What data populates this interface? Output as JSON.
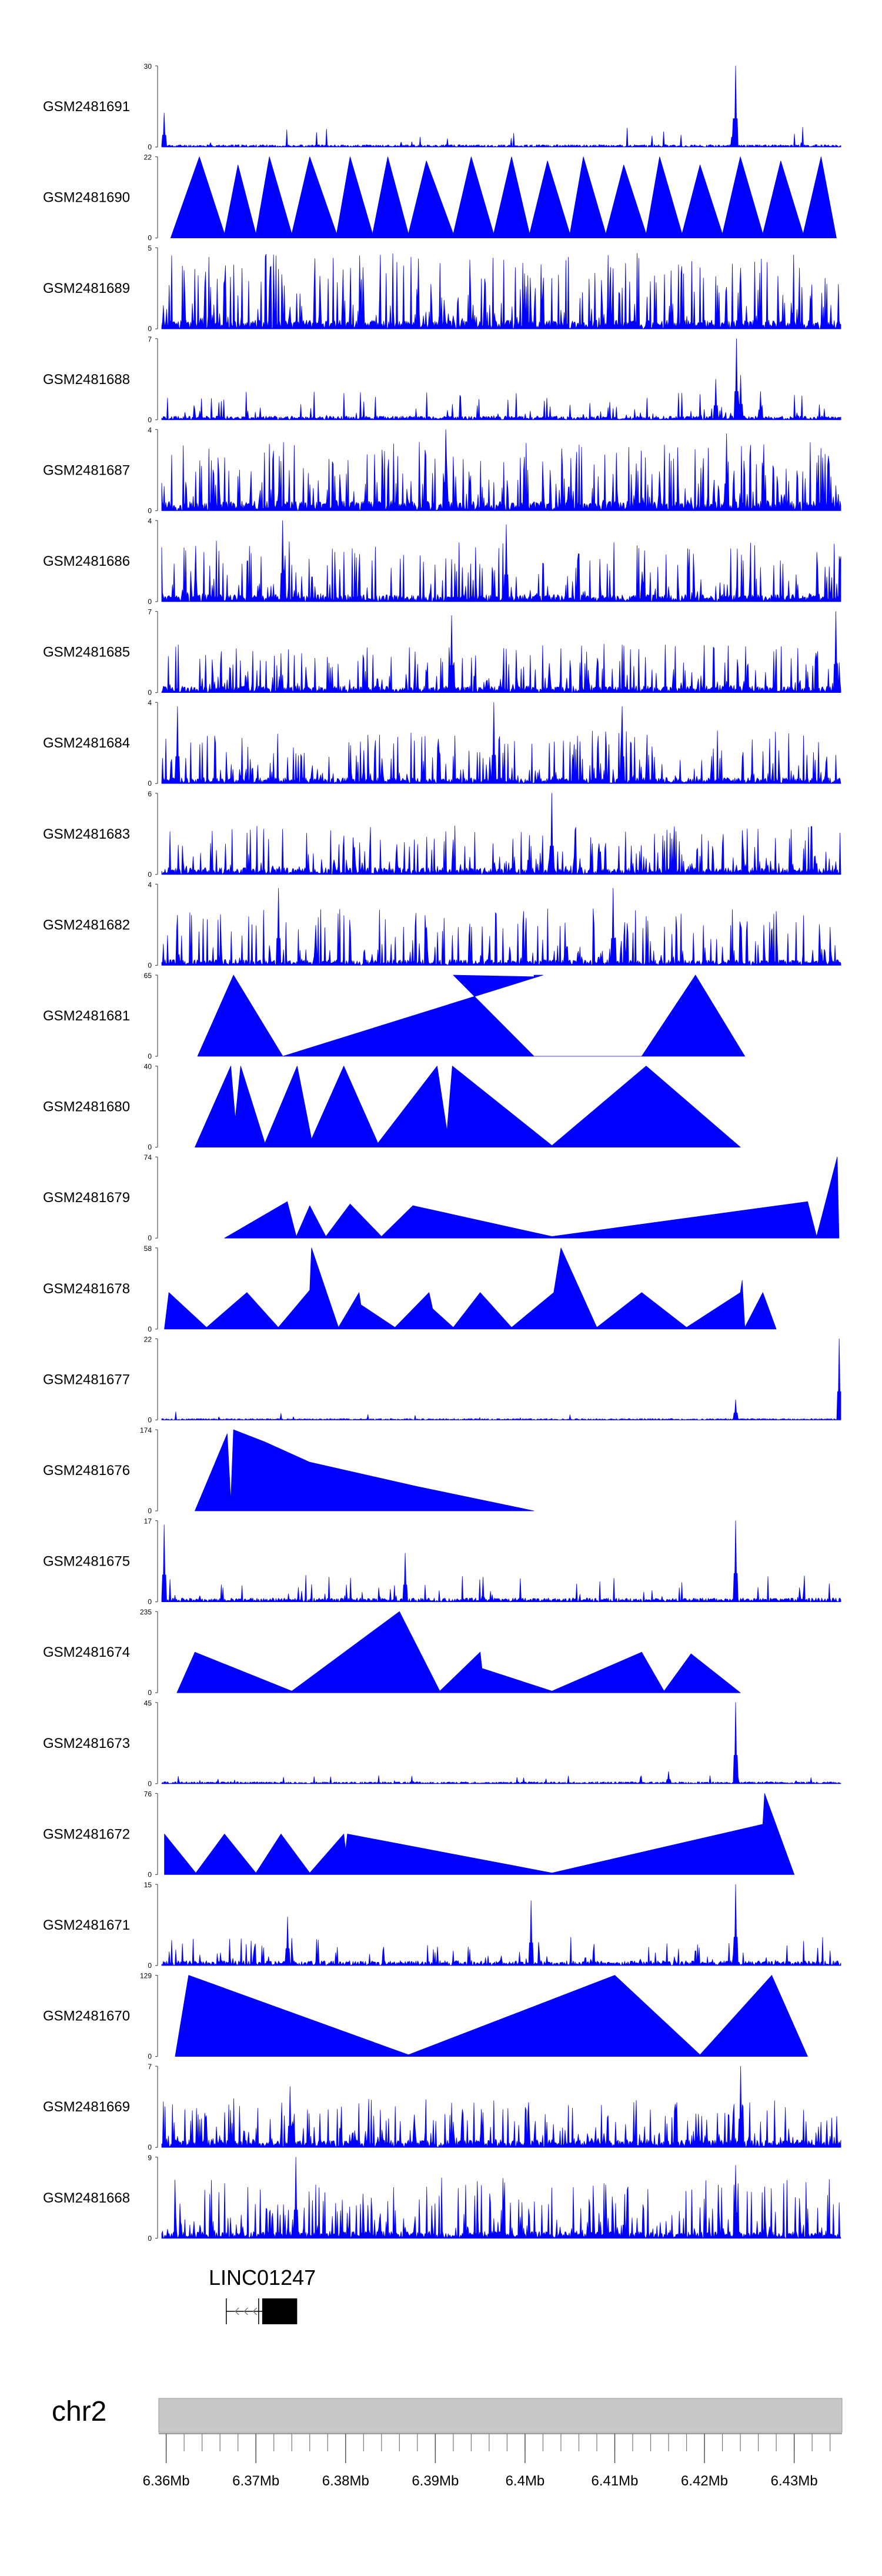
{
  "colors": {
    "signal": "#0000ff",
    "axis": "#555555",
    "ideogram": "#c8c8c8",
    "gene": "#000000"
  },
  "chart_data": {
    "type": "area",
    "title": "",
    "xlabel": "",
    "x_range_mb": [
      6.3595,
      6.4352
    ],
    "x_ticks": [
      "6.36Mb",
      "6.37Mb",
      "6.38Mb",
      "6.39Mb",
      "6.4Mb",
      "6.41Mb",
      "6.42Mb",
      "6.43Mb"
    ],
    "x_tick_values": [
      6.36,
      6.37,
      6.38,
      6.39,
      6.4,
      6.41,
      6.42,
      6.43
    ],
    "chromosome": "chr2",
    "gene": {
      "name": "LINC01247",
      "strand": "-",
      "start_mb": 6.3667,
      "end_mb": 6.3746,
      "exon_start_mb": 6.3707,
      "exon_end_mb": 6.3746
    },
    "tracks": [
      {
        "name": "GSM2481691",
        "ymax": 30,
        "style": "noisy",
        "seed": 11,
        "base": 0.05,
        "spikeProb": 0.03,
        "spikeMax": 0.25,
        "peaks": [
          [
            6.4235,
            1.0
          ],
          [
            6.3598,
            0.42
          ],
          [
            6.4232,
            0.35
          ]
        ]
      },
      {
        "name": "GSM2481690",
        "ymax": 22,
        "style": "tri",
        "points": [
          [
            6.3605,
            0
          ],
          [
            6.3637,
            1
          ],
          [
            6.3665,
            0.05
          ],
          [
            6.368,
            0.9
          ],
          [
            6.37,
            0.05
          ],
          [
            6.3715,
            1
          ],
          [
            6.374,
            0.05
          ],
          [
            6.376,
            1
          ],
          [
            6.379,
            0.05
          ],
          [
            6.3805,
            1
          ],
          [
            6.383,
            0.05
          ],
          [
            6.3847,
            1
          ],
          [
            6.387,
            0.05
          ],
          [
            6.389,
            0.95
          ],
          [
            6.392,
            0.05
          ],
          [
            6.394,
            1
          ],
          [
            6.3965,
            0.05
          ],
          [
            6.3985,
            1
          ],
          [
            6.4005,
            0.05
          ],
          [
            6.4025,
            0.95
          ],
          [
            6.405,
            0.05
          ],
          [
            6.4065,
            1
          ],
          [
            6.409,
            0.05
          ],
          [
            6.411,
            0.9
          ],
          [
            6.4135,
            0.05
          ],
          [
            6.415,
            1
          ],
          [
            6.4175,
            0.05
          ],
          [
            6.4195,
            0.9
          ],
          [
            6.422,
            0.05
          ],
          [
            6.424,
            1
          ],
          [
            6.4265,
            0.05
          ],
          [
            6.4285,
            0.95
          ],
          [
            6.431,
            0.05
          ],
          [
            6.433,
            1
          ],
          [
            6.4347,
            0
          ]
        ],
        "spikes": true,
        "seed": 22
      },
      {
        "name": "GSM2481689",
        "ymax": 5,
        "style": "noisy",
        "seed": 33,
        "base": 0.18,
        "spikeProb": 0.35,
        "spikeMax": 0.95,
        "peaks": []
      },
      {
        "name": "GSM2481688",
        "ymax": 7,
        "style": "noisy",
        "seed": 44,
        "base": 0.08,
        "spikeProb": 0.12,
        "spikeMax": 0.35,
        "peaks": [
          [
            6.4236,
            1.0
          ],
          [
            6.424,
            0.55
          ],
          [
            6.4213,
            0.5
          ],
          [
            6.4262,
            0.35
          ]
        ]
      },
      {
        "name": "GSM2481687",
        "ymax": 4,
        "style": "noisy",
        "seed": 55,
        "base": 0.2,
        "spikeProb": 0.4,
        "spikeMax": 0.85,
        "peaks": [
          [
            6.3912,
            1.0
          ],
          [
            6.4225,
            0.95
          ]
        ]
      },
      {
        "name": "GSM2481686",
        "ymax": 4,
        "style": "noisy",
        "seed": 66,
        "base": 0.15,
        "spikeProb": 0.3,
        "spikeMax": 0.75,
        "peaks": [
          [
            6.373,
            1.0
          ],
          [
            6.3979,
            0.95
          ]
        ]
      },
      {
        "name": "GSM2481685",
        "ymax": 7,
        "style": "noisy",
        "seed": 77,
        "base": 0.14,
        "spikeProb": 0.3,
        "spikeMax": 0.6,
        "peaks": [
          [
            6.3918,
            0.95
          ],
          [
            6.4346,
            1.0
          ]
        ]
      },
      {
        "name": "GSM2481684",
        "ymax": 4,
        "style": "noisy",
        "seed": 88,
        "base": 0.12,
        "spikeProb": 0.3,
        "spikeMax": 0.65,
        "peaks": [
          [
            6.3613,
            0.95
          ],
          [
            6.3965,
            1.0
          ],
          [
            6.4108,
            0.95
          ]
        ]
      },
      {
        "name": "GSM2481683",
        "ymax": 6,
        "style": "noisy",
        "seed": 99,
        "base": 0.14,
        "spikeProb": 0.3,
        "spikeMax": 0.6,
        "peaks": [
          [
            6.403,
            1.0
          ]
        ]
      },
      {
        "name": "GSM2481682",
        "ymax": 4,
        "style": "noisy",
        "seed": 111,
        "base": 0.12,
        "spikeProb": 0.3,
        "spikeMax": 0.7,
        "peaks": [
          [
            6.3725,
            0.95
          ],
          [
            6.4098,
            0.95
          ]
        ]
      },
      {
        "name": "GSM2481681",
        "ymax": 65,
        "style": "tri",
        "points": [
          [
            6.3635,
            0
          ],
          [
            6.3675,
            1
          ],
          [
            6.373,
            0
          ],
          [
            6.402,
            1
          ],
          [
            6.401,
            1
          ],
          [
            6.401,
            0.98
          ],
          [
            6.392,
            1
          ],
          [
            6.401,
            0
          ],
          [
            6.401,
            0
          ],
          [
            6.413,
            0
          ],
          [
            6.419,
            1
          ],
          [
            6.4245,
            0
          ]
        ],
        "seed": 0
      },
      {
        "name": "GSM2481680",
        "ymax": 40,
        "style": "tri",
        "points": [
          [
            6.3632,
            0
          ],
          [
            6.3672,
            1
          ],
          [
            6.3677,
            0.35
          ],
          [
            6.3683,
            1
          ],
          [
            6.371,
            0.05
          ],
          [
            6.3746,
            1
          ],
          [
            6.3762,
            0.1
          ],
          [
            6.3798,
            1
          ],
          [
            6.3836,
            0.05
          ],
          [
            6.3902,
            1
          ],
          [
            6.3913,
            0.2
          ],
          [
            6.3919,
            1
          ],
          [
            6.403,
            0.02
          ],
          [
            6.4135,
            1
          ],
          [
            6.424,
            0
          ]
        ],
        "seed": 0
      },
      {
        "name": "GSM2481679",
        "ymax": 74,
        "style": "tri",
        "points": [
          [
            6.3665,
            0
          ],
          [
            6.3735,
            0.45
          ],
          [
            6.3745,
            0.02
          ],
          [
            6.376,
            0.4
          ],
          [
            6.3778,
            0.02
          ],
          [
            6.3805,
            0.42
          ],
          [
            6.384,
            0.02
          ],
          [
            6.3875,
            0.4
          ],
          [
            6.403,
            0.02
          ],
          [
            6.4315,
            0.45
          ],
          [
            6.4325,
            0.02
          ],
          [
            6.4348,
            1.0
          ],
          [
            6.435,
            0
          ]
        ],
        "seed": 0
      },
      {
        "name": "GSM2481678",
        "ymax": 58,
        "style": "tri",
        "points": [
          [
            6.3598,
            0
          ],
          [
            6.3603,
            0.45
          ],
          [
            6.3645,
            0.02
          ],
          [
            6.369,
            0.45
          ],
          [
            6.3725,
            0.02
          ],
          [
            6.376,
            0.48
          ],
          [
            6.3762,
            1.0
          ],
          [
            6.3792,
            0.02
          ],
          [
            6.3815,
            0.45
          ],
          [
            6.3817,
            0.3
          ],
          [
            6.3855,
            0.02
          ],
          [
            6.3893,
            0.45
          ],
          [
            6.3897,
            0.25
          ],
          [
            6.392,
            0.02
          ],
          [
            6.395,
            0.45
          ],
          [
            6.3985,
            0.02
          ],
          [
            6.4032,
            0.45
          ],
          [
            6.404,
            1.0
          ],
          [
            6.408,
            0.02
          ],
          [
            6.413,
            0.45
          ],
          [
            6.418,
            0.02
          ],
          [
            6.424,
            0.45
          ],
          [
            6.4242,
            0.6
          ],
          [
            6.4245,
            0.02
          ],
          [
            6.4265,
            0.45
          ],
          [
            6.428,
            0
          ]
        ],
        "seed": 0
      },
      {
        "name": "GSM2481677",
        "ymax": 22,
        "style": "noisy",
        "seed": 122,
        "base": 0.03,
        "spikeProb": 0.03,
        "spikeMax": 0.12,
        "peaks": [
          [
            6.435,
            1.0
          ],
          [
            6.4235,
            0.25
          ]
        ]
      },
      {
        "name": "GSM2481676",
        "ymax": 174,
        "style": "tri",
        "points": [
          [
            6.3632,
            0
          ],
          [
            6.3668,
            0.95
          ],
          [
            6.3672,
            0.12
          ],
          [
            6.3675,
            1.0
          ],
          [
            6.371,
            0.85
          ],
          [
            6.376,
            0.6
          ],
          [
            6.388,
            0.3
          ],
          [
            6.401,
            0
          ]
        ],
        "seed": 0
      },
      {
        "name": "GSM2481675",
        "ymax": 17,
        "style": "noisy",
        "seed": 133,
        "base": 0.08,
        "spikeProb": 0.1,
        "spikeMax": 0.35,
        "peaks": [
          [
            6.3598,
            0.95
          ],
          [
            6.4235,
            1.0
          ],
          [
            6.3866,
            0.6
          ]
        ]
      },
      {
        "name": "GSM2481674",
        "ymax": 235,
        "style": "tri",
        "points": [
          [
            6.3612,
            0
          ],
          [
            6.3632,
            0.5
          ],
          [
            6.374,
            0.02
          ],
          [
            6.386,
            1.0
          ],
          [
            6.3905,
            0.02
          ],
          [
            6.395,
            0.5
          ],
          [
            6.3952,
            0.3
          ],
          [
            6.403,
            0.02
          ],
          [
            6.413,
            0.5
          ],
          [
            6.4155,
            0.02
          ],
          [
            6.4185,
            0.48
          ],
          [
            6.424,
            0
          ]
        ],
        "seed": 0
      },
      {
        "name": "GSM2481673",
        "ymax": 45,
        "style": "noisy",
        "seed": 144,
        "base": 0.04,
        "spikeProb": 0.05,
        "spikeMax": 0.1,
        "peaks": [
          [
            6.4235,
            1.0
          ],
          [
            6.416,
            0.15
          ]
        ]
      },
      {
        "name": "GSM2481672",
        "ymax": 76,
        "style": "tri",
        "points": [
          [
            6.3598,
            0.5
          ],
          [
            6.3633,
            0.02
          ],
          [
            6.3665,
            0.5
          ],
          [
            6.37,
            0.02
          ],
          [
            6.3728,
            0.5
          ],
          [
            6.376,
            0.02
          ],
          [
            6.3798,
            0.5
          ],
          [
            6.38,
            0.3
          ],
          [
            6.3802,
            0.5
          ],
          [
            6.403,
            0.02
          ],
          [
            6.4265,
            0.62
          ],
          [
            6.4267,
            1.0
          ],
          [
            6.43,
            0
          ]
        ],
        "seed": 0
      },
      {
        "name": "GSM2481671",
        "ymax": 15,
        "style": "noisy",
        "seed": 155,
        "base": 0.1,
        "spikeProb": 0.15,
        "spikeMax": 0.35,
        "peaks": [
          [
            6.4235,
            1.0
          ],
          [
            6.4007,
            0.8
          ],
          [
            6.3735,
            0.6
          ]
        ]
      },
      {
        "name": "GSM2481670",
        "ymax": 129,
        "style": "tri",
        "points": [
          [
            6.361,
            0
          ],
          [
            6.3625,
            1.0
          ],
          [
            6.387,
            0.02
          ],
          [
            6.41,
            1.0
          ],
          [
            6.4195,
            0.02
          ],
          [
            6.4275,
            1.0
          ],
          [
            6.4315,
            0
          ]
        ],
        "seed": 0
      },
      {
        "name": "GSM2481669",
        "ymax": 7,
        "style": "noisy",
        "seed": 166,
        "base": 0.16,
        "spikeProb": 0.35,
        "spikeMax": 0.6,
        "peaks": [
          [
            6.424,
            1.0
          ],
          [
            6.3738,
            0.75
          ]
        ]
      },
      {
        "name": "GSM2481668",
        "ymax": 9,
        "style": "noisy",
        "seed": 177,
        "base": 0.14,
        "spikeProb": 0.35,
        "spikeMax": 0.75,
        "peaks": [
          [
            6.3745,
            1.0
          ],
          [
            6.4235,
            0.9
          ]
        ]
      }
    ]
  }
}
